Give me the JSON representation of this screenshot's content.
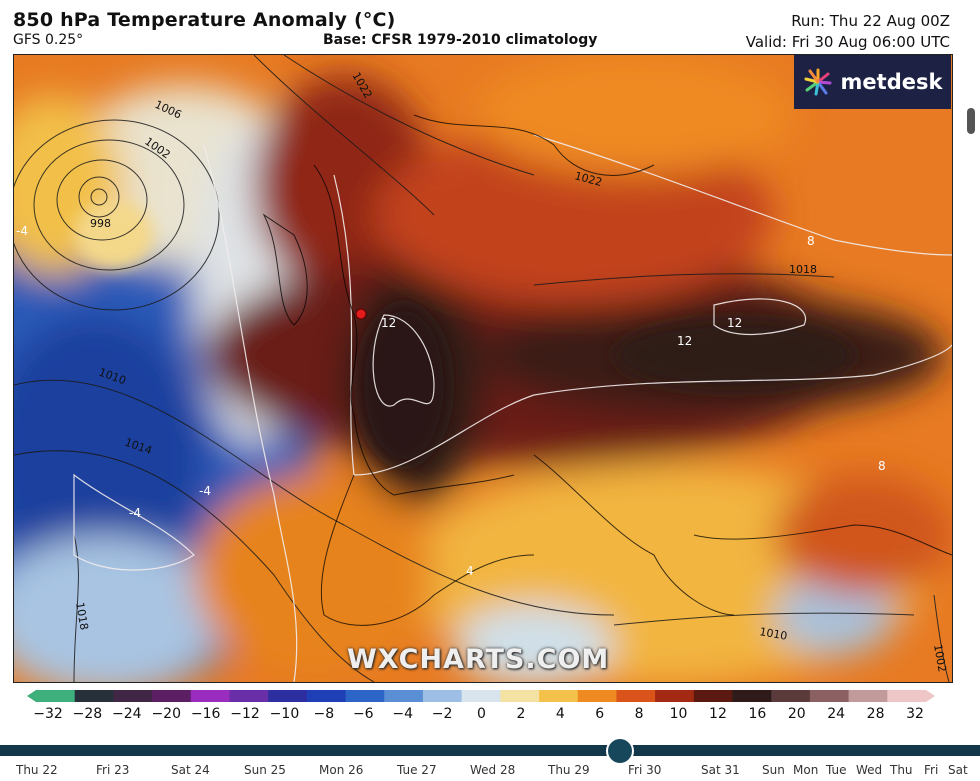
{
  "header": {
    "title": "850 hPa Temperature Anomaly (°C)",
    "model": "GFS 0.25°",
    "base": "Base: CFSR 1979-2010 climatology",
    "run": "Run: Thu 22 Aug 00Z",
    "valid": "Valid: Fri 30 Aug 06:00 UTC"
  },
  "logo": {
    "text": "metdesk",
    "icon": "starburst-logo-icon"
  },
  "watermark": "WXCHARTS.COM",
  "map": {
    "isobar_labels": [
      "1006",
      "1002",
      "998",
      "1022",
      "1022",
      "1010",
      "1014",
      "1018",
      "1018",
      "1010",
      "1002"
    ],
    "anomaly_labels": [
      "12",
      "12",
      "12",
      "8",
      "8",
      "4",
      "-4",
      "-4",
      "-4"
    ],
    "marker": "location-marker"
  },
  "color_scale": {
    "ticks": [
      "−32",
      "−28",
      "−24",
      "−20",
      "−16",
      "−12",
      "−10",
      "−8",
      "−6",
      "−4",
      "−2",
      "0",
      "2",
      "4",
      "6",
      "8",
      "10",
      "12",
      "16",
      "20",
      "24",
      "28",
      "32"
    ],
    "colors": [
      "#3fb07c",
      "#27303a",
      "#412746",
      "#5d1f63",
      "#9b2cc0",
      "#6a2fa8",
      "#2d2fa0",
      "#1e3fb5",
      "#2c64c8",
      "#5a8fd6",
      "#9dbfe6",
      "#d8e4ee",
      "#f4e1a4",
      "#f4c24a",
      "#ef8a22",
      "#d9531a",
      "#a22a13",
      "#5a1a12",
      "#2e1a19",
      "#5a3a3a",
      "#8a6060",
      "#c29a9a",
      "#eec6c6"
    ]
  },
  "timeline": {
    "days": [
      "Thu 22",
      "Fri 23",
      "Sat 24",
      "Sun 25",
      "Mon 26",
      "Tue 27",
      "Wed 28",
      "Thu 29",
      "Fri 30",
      "Sat 31",
      "Sun",
      "Mon",
      "Tue",
      "Wed",
      "Thu",
      "Fri",
      "Sat"
    ],
    "selected": "Fri 30"
  }
}
